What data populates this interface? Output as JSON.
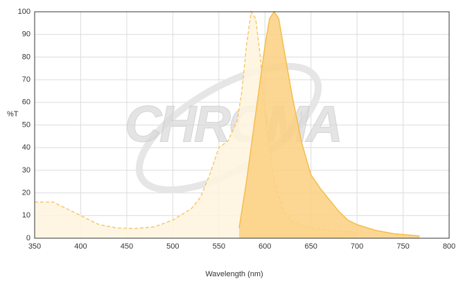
{
  "chart_data": {
    "type": "area",
    "xlabel": "Wavelength (nm)",
    "ylabel": "%T",
    "watermark": "CHROMA",
    "xlim": [
      350,
      800
    ],
    "xticks": [
      350,
      400,
      450,
      500,
      550,
      600,
      650,
      700,
      750,
      800
    ],
    "ylim": [
      0,
      100
    ],
    "yticks": [
      0,
      10,
      20,
      30,
      40,
      50,
      60,
      70,
      80,
      90,
      100
    ],
    "grid": true,
    "series": [
      {
        "color": "#f8c76a",
        "fill": "#fef4de",
        "dashed": true,
        "x": [
          350,
          370,
          380,
          400,
          420,
          440,
          460,
          480,
          500,
          520,
          530,
          540,
          550,
          560,
          570,
          575,
          580,
          585,
          590,
          595,
          600,
          610,
          620,
          630,
          650,
          670,
          690,
          700
        ],
        "values": [
          16,
          16,
          14,
          10,
          6,
          4.5,
          4.3,
          5,
          8,
          13,
          18,
          28,
          40,
          43,
          52,
          65,
          85,
          100,
          97,
          80,
          55,
          25,
          12,
          7,
          4.5,
          3.5,
          2.8,
          2.5
        ]
      },
      {
        "color": "#f5bc4c",
        "fill": "#fbd080",
        "dashed": false,
        "x": [
          572,
          580,
          590,
          600,
          605,
          610,
          615,
          620,
          630,
          640,
          650,
          660,
          670,
          680,
          690,
          700,
          720,
          740,
          768
        ],
        "values": [
          4.5,
          25,
          55,
          85,
          97,
          100,
          97,
          85,
          62,
          42,
          28,
          22,
          17,
          12,
          8,
          6,
          3.5,
          2,
          1
        ]
      }
    ]
  }
}
